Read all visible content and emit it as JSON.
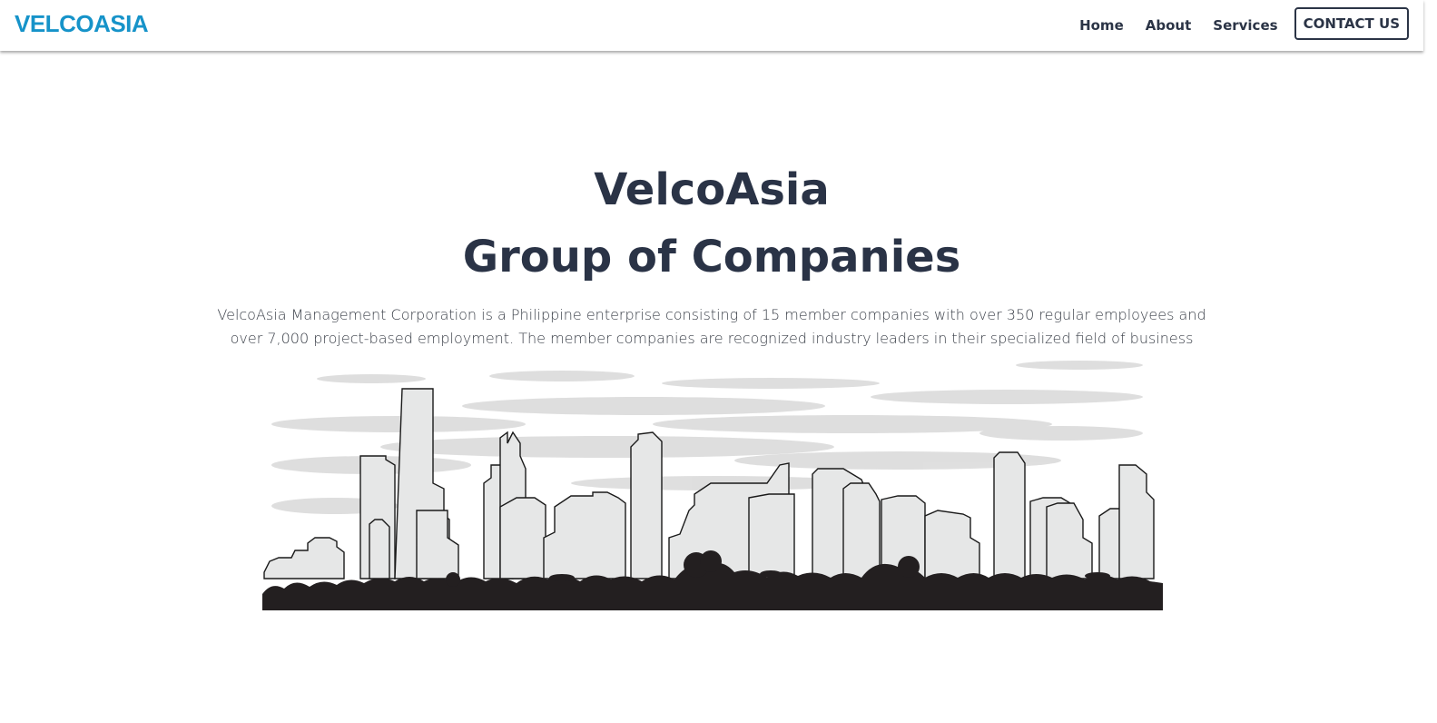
{
  "navbar": {
    "brand": "VELCOASIA",
    "links": [
      "Home",
      "About",
      "Services"
    ],
    "contact_label": "CONTACT US"
  },
  "hero": {
    "title_line1": "VelcoAsia",
    "title_line2": "Group of Companies",
    "description": "VelcoAsia Management Corporation is a Philippine enterprise consisting of 15 member companies with over 350 regular employees and over 7,000 project-based employment. The member companies are recognized industry leaders in their specialized field of business"
  },
  "colors": {
    "brand": "#1693c9",
    "heading": "#2a3346",
    "text": "#3a3f48",
    "building_fill": "#e6e7e7",
    "ground": "#231f20"
  }
}
